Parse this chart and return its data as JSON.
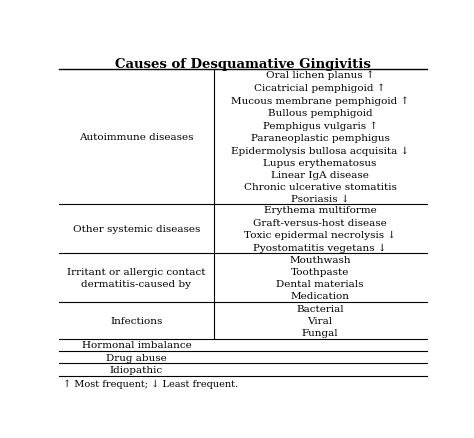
{
  "title": "Causes of Desquamative Gingivitis",
  "rows": [
    {
      "left": "Autoimmune diseases",
      "right": "Oral lichen planus ↑\nCicatricial pemphigoid ↑\nMucous membrane pemphigoid ↑\nBullous pemphigoid\nPemphigus vulgaris ↑\nParaneoplastic pemphigus\nEpidermolysis bullosa acquisita ↓\nLupus erythematosus\nLinear IgA disease\nChronic ulcerative stomatitis\nPsoriasis ↓"
    },
    {
      "left": "Other systemic diseases",
      "right": "Erythema multiforme\nGraft-versus-host disease\nToxic epidermal necrolysis ↓\nPyostomatitis vegetans ↓"
    },
    {
      "left": "Irritant or allergic contact\ndermatitis-caused by",
      "right": "Mouthwash\nToothpaste\nDental materials\nMedication"
    },
    {
      "left": "Infections",
      "right": "Bacterial\nViral\nFungal"
    },
    {
      "left": "Hormonal imbalance",
      "right": ""
    },
    {
      "left": "Drug abuse",
      "right": ""
    },
    {
      "left": "Idiopathic",
      "right": ""
    }
  ],
  "footnote": "↑ Most frequent; ↓ Least frequent.",
  "col_split": 0.42,
  "bg_color": "#ffffff",
  "text_color": "#000000",
  "title_fontsize": 9.5,
  "body_fontsize": 7.5,
  "footnote_fontsize": 7.0,
  "line_counts": [
    11,
    4,
    4,
    3,
    1,
    1,
    1
  ]
}
